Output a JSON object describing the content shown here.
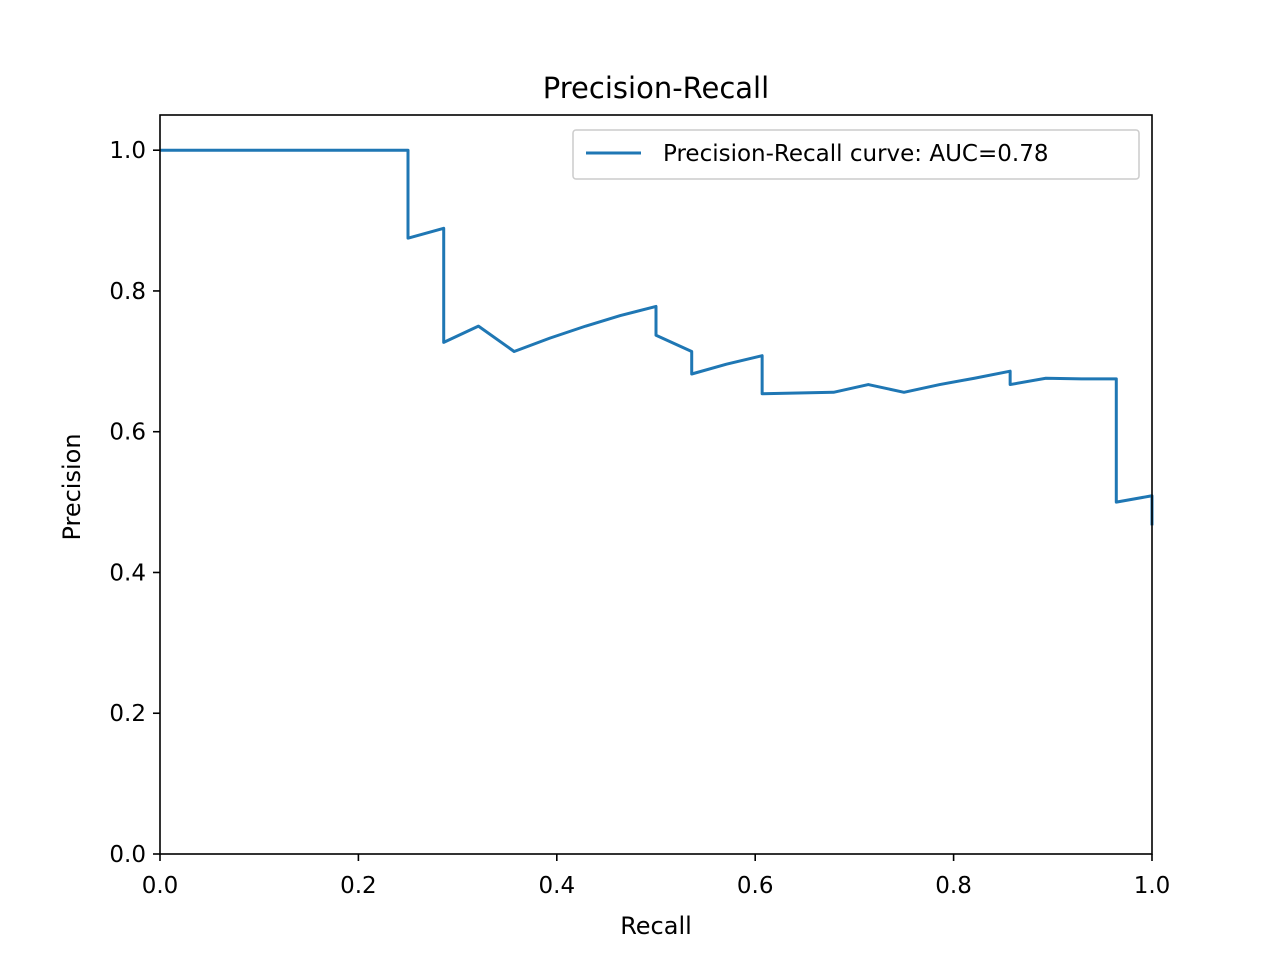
{
  "chart_data": {
    "type": "line",
    "title": "Precision-Recall",
    "xlabel": "Recall",
    "ylabel": "Precision",
    "xlim": [
      0.0,
      1.0
    ],
    "ylim": [
      0.0,
      1.05
    ],
    "xticks": [
      "0.0",
      "0.2",
      "0.4",
      "0.6",
      "0.8",
      "1.0"
    ],
    "yticks": [
      "0.0",
      "0.2",
      "0.4",
      "0.6",
      "0.8",
      "1.0"
    ],
    "grid": false,
    "legend_position": "top-right",
    "series": [
      {
        "name": "Precision-Recall curve: AUC=0.78",
        "color": "#1f77b4",
        "x": [
          0.0,
          0.25,
          0.25,
          0.286,
          0.286,
          0.321,
          0.357,
          0.393,
          0.429,
          0.464,
          0.5,
          0.5,
          0.536,
          0.536,
          0.571,
          0.607,
          0.607,
          0.643,
          0.679,
          0.714,
          0.75,
          0.786,
          0.821,
          0.857,
          0.857,
          0.893,
          0.929,
          0.964,
          0.964,
          1.0,
          1.0
        ],
        "y": [
          1.0,
          1.0,
          0.875,
          0.889,
          0.727,
          0.75,
          0.714,
          0.733,
          0.75,
          0.765,
          0.778,
          0.737,
          0.714,
          0.682,
          0.696,
          0.708,
          0.654,
          0.655,
          0.656,
          0.667,
          0.656,
          0.667,
          0.676,
          0.686,
          0.667,
          0.676,
          0.675,
          0.675,
          0.5,
          0.509,
          0.467
        ]
      }
    ]
  }
}
